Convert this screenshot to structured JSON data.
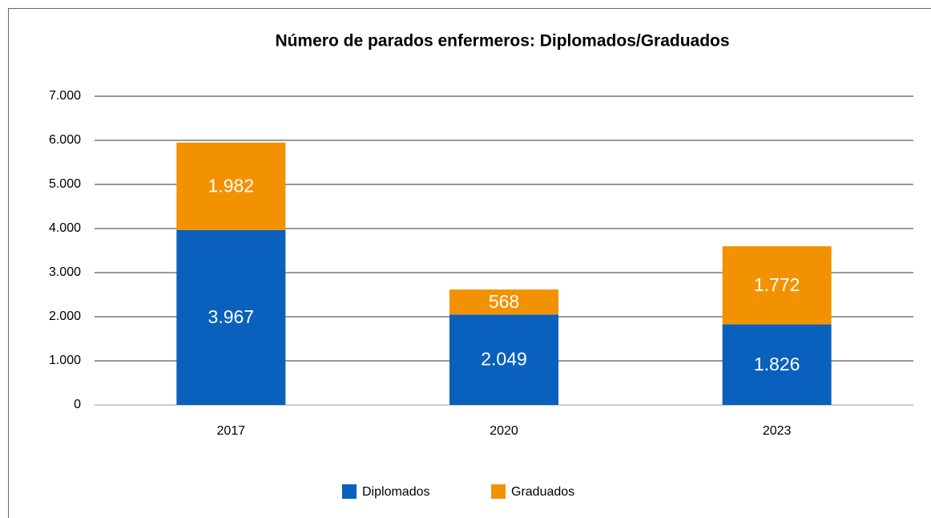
{
  "chart_data": {
    "type": "bar",
    "stacked": true,
    "title": "Número de parados enfermeros: Diplomados/Graduados",
    "categories": [
      "2017",
      "2020",
      "2023"
    ],
    "series": [
      {
        "name": "Diplomados",
        "color": "#0a60bd",
        "values": [
          3967,
          2049,
          1826
        ],
        "value_labels": [
          "3.967",
          "2.049",
          "1.826"
        ]
      },
      {
        "name": "Graduados",
        "color": "#f39200",
        "values": [
          1982,
          568,
          1772
        ],
        "value_labels": [
          "1.982",
          "568",
          "1.772"
        ]
      }
    ],
    "ylim": [
      0,
      7000
    ],
    "yticks": [
      0,
      {
        "value": 1000,
        "label": "1.000"
      },
      {
        "value": 2000,
        "label": "2.000"
      },
      {
        "value": 3000,
        "label": "3.000"
      },
      {
        "value": 4000,
        "label": "4.000"
      },
      {
        "value": 5000,
        "label": "5.000"
      },
      {
        "value": 6000,
        "label": "6.000"
      },
      {
        "value": 7000,
        "label": "7.000"
      }
    ],
    "grid": true,
    "legend": "bottom"
  }
}
